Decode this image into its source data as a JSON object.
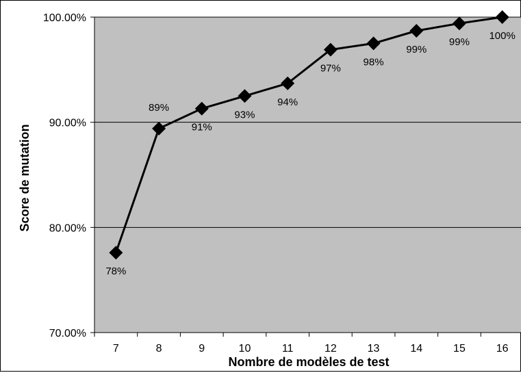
{
  "chart_data": {
    "type": "line",
    "xlabel": "Nombre de modèles de test",
    "ylabel": "Score de mutation",
    "x": [
      7,
      8,
      9,
      10,
      11,
      12,
      13,
      14,
      15,
      16
    ],
    "series": [
      {
        "values": [
          77.6,
          89.4,
          91.3,
          92.5,
          93.7,
          96.9,
          97.5,
          98.7,
          99.4,
          100.0
        ],
        "labels": [
          "78%",
          "89%",
          "91%",
          "93%",
          "94%",
          "97%",
          "98%",
          "99%",
          "99%",
          "100%"
        ]
      }
    ],
    "ylim": [
      70,
      100
    ],
    "yticks": [
      70,
      80,
      90,
      100
    ],
    "ytick_labels": [
      "70.00%",
      "80.00%",
      "90.00%",
      "100.00%"
    ],
    "grid": true,
    "legend": "none",
    "marker": "diamond",
    "colors": {
      "plot_background": "#c0c0c0",
      "line": "#000000",
      "marker": "#000000",
      "gridline": "#000000"
    }
  }
}
